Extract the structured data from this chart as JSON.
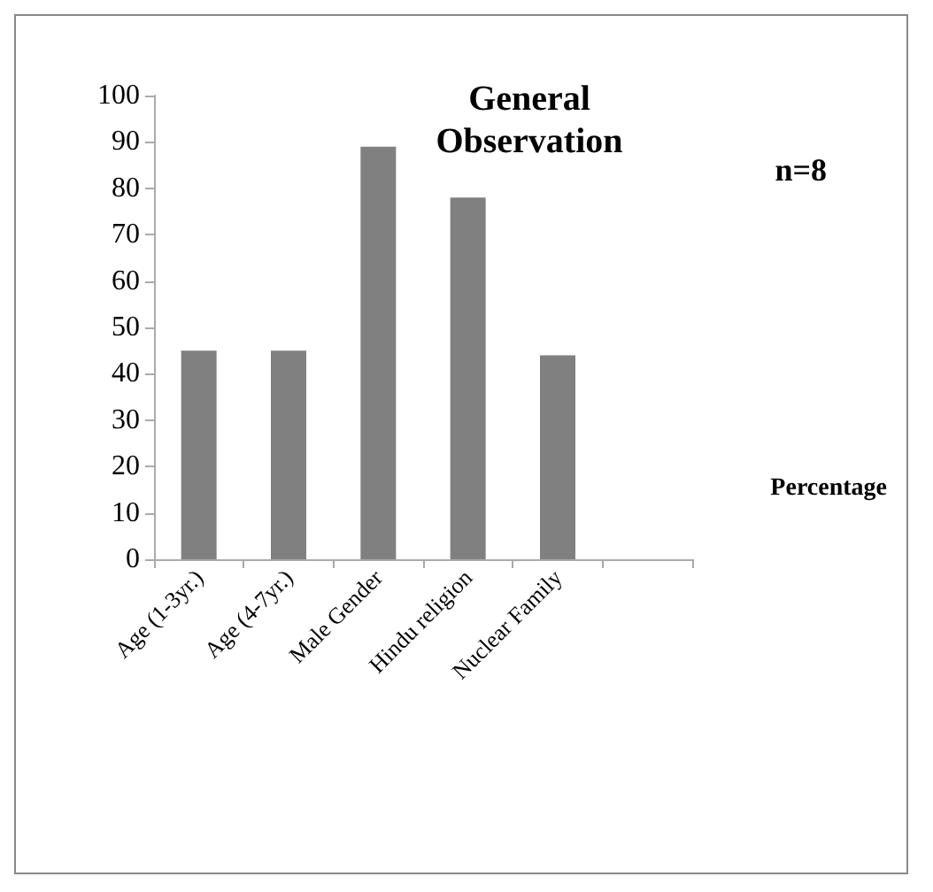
{
  "chart_data": {
    "type": "bar",
    "title": "General Observation",
    "categories": [
      "Age (1-3yr.)",
      "Age (4-7yr.)",
      "Male Gender",
      "Hindu religion",
      "Nuclear Family",
      null
    ],
    "series": [
      {
        "name": "Percentage",
        "color": "#808080",
        "values": [
          45,
          45,
          89,
          78,
          44,
          null
        ]
      }
    ],
    "ylim": [
      0,
      100
    ],
    "yticks": [
      0,
      10,
      20,
      30,
      40,
      50,
      60,
      70,
      80,
      90,
      100
    ],
    "annotations": [
      "n=8"
    ],
    "legend": "right",
    "grid": false
  }
}
